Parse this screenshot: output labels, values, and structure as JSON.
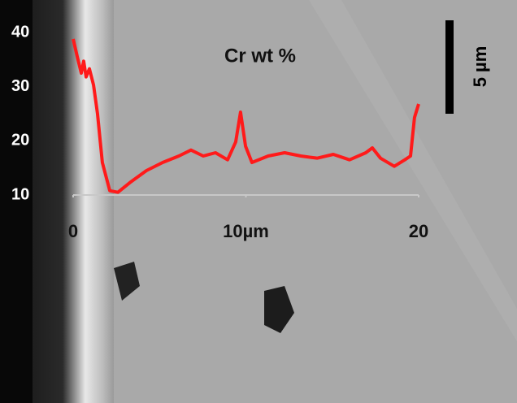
{
  "chart_data": {
    "type": "line",
    "title": "Cr wt %",
    "scale_bar_label": "5 µm",
    "x": [
      0,
      0.24,
      0.47,
      0.61,
      0.75,
      0.94,
      1.18,
      1.41,
      1.69,
      2.12,
      2.59,
      3.29,
      4.24,
      5.18,
      6.12,
      6.82,
      7.53,
      8.24,
      8.94,
      9.41,
      9.69,
      9.98,
      10.35,
      11.29,
      12.24,
      13.18,
      14.12,
      15.06,
      16.0,
      16.94,
      17.32,
      17.79,
      18.59,
      19.2,
      19.53,
      19.76,
      20
    ],
    "series": [
      {
        "color": "#ff1a1a",
        "values": [
          38.8,
          35.5,
          32.5,
          34.7,
          31.8,
          33.3,
          30.3,
          25,
          16,
          10.8,
          10.5,
          12.3,
          14.5,
          16,
          17.2,
          18.3,
          17.2,
          17.8,
          16.5,
          19.8,
          25.3,
          19,
          16,
          17.2,
          17.8,
          17.2,
          16.8,
          17.5,
          16.5,
          17.8,
          18.7,
          16.8,
          15.3,
          16.5,
          17.2,
          24.3,
          26.8
        ]
      }
    ],
    "xlim": [
      0,
      20
    ],
    "xticks": [
      0,
      {
        "value": 10,
        "label": "10µm"
      },
      20
    ],
    "ylim": [
      10,
      40
    ],
    "yticks": [
      10,
      20,
      30,
      40
    ]
  }
}
